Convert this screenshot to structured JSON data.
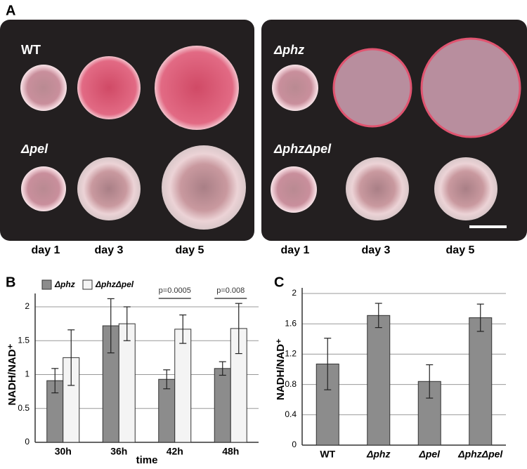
{
  "figure": {
    "panel_labels": [
      "A",
      "B",
      "C"
    ],
    "strains": [
      "WT",
      "Δpel",
      "Δphz",
      "ΔphzΔpel"
    ],
    "days": [
      "day 1",
      "day 3",
      "day 5",
      "day 1",
      "day 3",
      "day 5"
    ]
  },
  "chart_data": [
    {
      "type": "bar",
      "ylabel": "NADH/NAD⁺",
      "xlabel": "time",
      "categories": [
        "30h",
        "36h",
        "42h",
        "48h"
      ],
      "series": [
        {
          "name": "Δphz",
          "color": "#8c8c8c",
          "values": [
            0.91,
            1.72,
            0.93,
            1.09
          ],
          "errors": [
            0.18,
            0.4,
            0.14,
            0.1
          ]
        },
        {
          "name": "ΔphzΔpel",
          "color": "#f4f4f4",
          "values": [
            1.25,
            1.75,
            1.67,
            1.68
          ],
          "errors": [
            0.41,
            0.25,
            0.21,
            0.37
          ]
        }
      ],
      "annotations": [
        "p=0.0005",
        "p=0.008"
      ],
      "ylim": [
        0,
        2
      ],
      "yticks": [
        0,
        0.5,
        1,
        1.5,
        2
      ],
      "grid": true
    },
    {
      "type": "bar",
      "ylabel": "NADH/NAD⁺",
      "categories": [
        "WT",
        "Δphz",
        "Δpel",
        "ΔphzΔpel"
      ],
      "values": [
        1.07,
        1.71,
        0.84,
        1.68
      ],
      "errors": [
        0.34,
        0.16,
        0.22,
        0.18
      ],
      "color": "#8c8c8c",
      "ylim": [
        0,
        2
      ],
      "yticks": [
        0,
        0.4,
        0.8,
        1.2,
        1.6,
        2
      ],
      "grid": true
    }
  ]
}
